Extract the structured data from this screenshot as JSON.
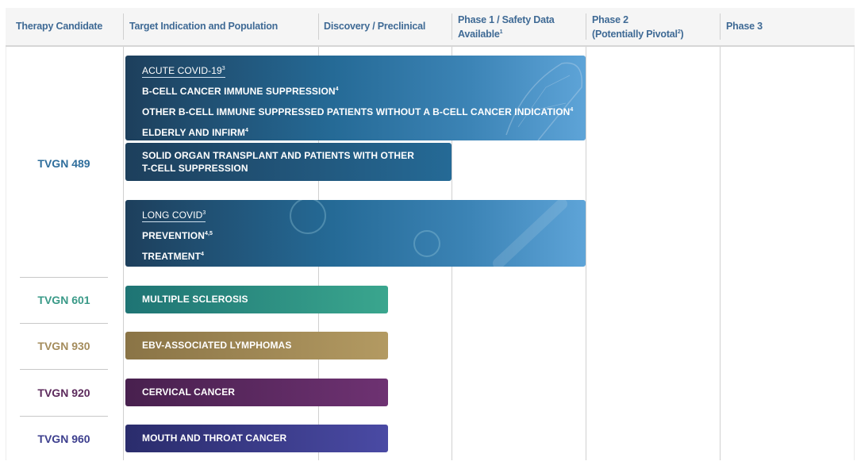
{
  "header": {
    "columns": [
      "Therapy Candidate",
      "Target Indication and Population",
      "Discovery / Preclinical",
      "Phase 1 / Safety Data Available",
      "Phase 2",
      "(Potentially Pivotal",
      "Phase 3"
    ],
    "footnotes": {
      "phase1": "1",
      "phase2": "2"
    }
  },
  "candidates": [
    {
      "name": "TVGN 489",
      "color": "#2f6e9c"
    },
    {
      "name": "TVGN 601",
      "color": "#3a9a88"
    },
    {
      "name": "TVGN 930",
      "color": "#a48c5c"
    },
    {
      "name": "TVGN 920",
      "color": "#5c2a5c"
    },
    {
      "name": "TVGN 960",
      "color": "#3d3f8e"
    }
  ],
  "programs": [
    {
      "candidate": "TVGN 489",
      "stage_reached": "Phase 1 / Safety Data Available",
      "heading": "ACUTE COVID-19",
      "heading_note": "3",
      "lines": [
        {
          "text": "B-CELL CANCER IMMUNE SUPPRESSION",
          "note": "4"
        },
        {
          "text": "OTHER B-CELL IMMUNE SUPPRESSED PATIENTS WITHOUT A B-CELL CANCER INDICATION",
          "note": "4"
        },
        {
          "text": "ELDERLY AND INFIRM",
          "note": "4"
        }
      ]
    },
    {
      "candidate": "TVGN 489",
      "stage_reached": "Discovery / Preclinical",
      "lines": [
        {
          "text": "SOLID ORGAN TRANSPLANT AND PATIENTS WITH OTHER"
        },
        {
          "text": "T-CELL SUPPRESSION"
        }
      ]
    },
    {
      "candidate": "TVGN 489",
      "stage_reached": "Phase 1 / Safety Data Available",
      "heading": "LONG COVID",
      "heading_note": "3",
      "lines": [
        {
          "text": "PREVENTION",
          "note": "4,5"
        },
        {
          "text": "TREATMENT",
          "note": "4"
        }
      ]
    },
    {
      "candidate": "TVGN 601",
      "stage_reached": "Discovery / Preclinical",
      "lines": [
        {
          "text": "MULTIPLE SCLEROSIS"
        }
      ],
      "colors": [
        "#1e7474",
        "#3aa68e"
      ]
    },
    {
      "candidate": "TVGN 930",
      "stage_reached": "Discovery / Preclinical",
      "lines": [
        {
          "text": "EBV-ASSOCIATED LYMPHOMAS"
        }
      ],
      "colors": [
        "#8a7446",
        "#b39a62"
      ]
    },
    {
      "candidate": "TVGN 920",
      "stage_reached": "Discovery / Preclinical",
      "lines": [
        {
          "text": "CERVICAL CANCER"
        }
      ],
      "colors": [
        "#48204e",
        "#6e3272"
      ]
    },
    {
      "candidate": "TVGN 960",
      "stage_reached": "Discovery / Preclinical",
      "lines": [
        {
          "text": "MOUTH AND THROAT CANCER"
        }
      ],
      "colors": [
        "#2a2c6c",
        "#4a4aa4"
      ]
    }
  ]
}
